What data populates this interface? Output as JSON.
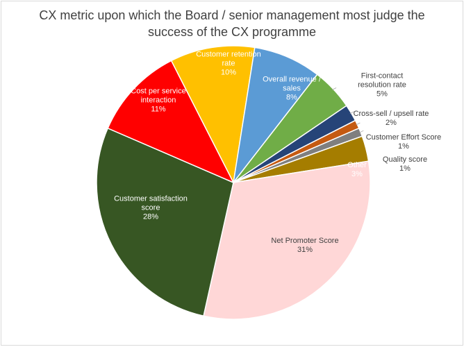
{
  "chart_data": {
    "type": "pie",
    "title_lines": [
      "CX metric upon which the Board / senior management most judge the",
      "success of the CX programme"
    ],
    "slices": [
      {
        "name": "Customer retention rate",
        "value": 10,
        "label": "10%",
        "color": "#FFC000",
        "label_lines": [
          "Customer retention",
          "rate"
        ],
        "label_color": "#FFFFFF"
      },
      {
        "name": "Overall revenue / sales",
        "value": 8,
        "label": "8%",
        "color": "#5B9BD5",
        "label_lines": [
          "Overall revenue /",
          "sales"
        ],
        "label_color": "#FFFFFF"
      },
      {
        "name": "First-contact resolution rate",
        "value": 5,
        "label": "5%",
        "color": "#70AD47",
        "label_lines": [
          "First-contact",
          "resolution rate"
        ],
        "label_color": "#404040"
      },
      {
        "name": "Cross-sell / upsell rate",
        "value": 2,
        "label": "2%",
        "color": "#264478",
        "label_lines": [
          "Cross-sell / upsell rate"
        ],
        "label_color": "#404040"
      },
      {
        "name": "Customer Effort Score",
        "value": 1,
        "label": "1%",
        "color": "#C55A11",
        "label_lines": [
          "Customer Effort Score"
        ],
        "label_color": "#404040"
      },
      {
        "name": "Quality score",
        "value": 1,
        "label": "1%",
        "color": "#7F7F7F",
        "label_lines": [
          "Quality score"
        ],
        "label_color": "#404040"
      },
      {
        "name": "Other",
        "value": 3,
        "label": "3%",
        "color": "#A57D00",
        "label_lines": [
          "Other"
        ],
        "label_color": "#FFFFFF"
      },
      {
        "name": "Net Promoter Score",
        "value": 31,
        "label": "31%",
        "color": "#FFD7D7",
        "label_lines": [
          "Net Promoter Score"
        ],
        "label_color": "#404040"
      },
      {
        "name": "Customer satisfaction score",
        "value": 28,
        "label": "28%",
        "color": "#375623",
        "label_lines": [
          "Customer satisfaction",
          "score"
        ],
        "label_color": "#FFFFFF"
      },
      {
        "name": "Cost per service interaction",
        "value": 11,
        "label": "11%",
        "color": "#FF0000",
        "label_lines": [
          "Cost per service",
          "interaction"
        ],
        "label_color": "#FFFFFF"
      }
    ],
    "legend": "none"
  }
}
